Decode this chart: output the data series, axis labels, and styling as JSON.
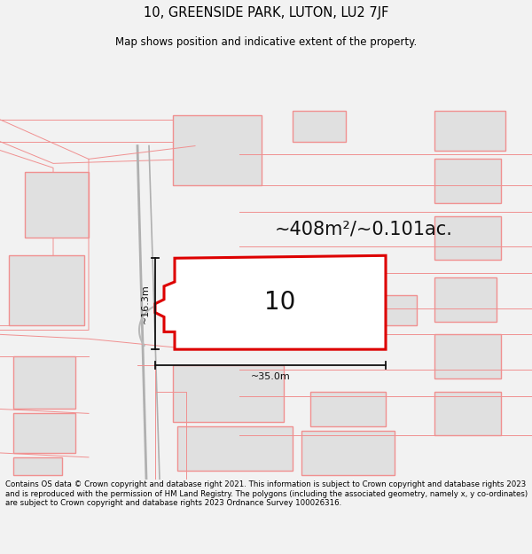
{
  "title_line1": "10, GREENSIDE PARK, LUTON, LU2 7JF",
  "title_line2": "Map shows position and indicative extent of the property.",
  "area_text": "~408m²/~0.101ac.",
  "label_width": "~35.0m",
  "label_height": "~16.3m",
  "property_number": "10",
  "footer_text": "Contains OS data © Crown copyright and database right 2021. This information is subject to Crown copyright and database rights 2023 and is reproduced with the permission of HM Land Registry. The polygons (including the associated geometry, namely x, y co-ordinates) are subject to Crown copyright and database rights 2023 Ordnance Survey 100026316.",
  "bg_color": "#f2f2f2",
  "map_bg": "#ffffff",
  "property_fill": "#ffffff",
  "property_edge": "#dd0000",
  "neighbor_fill": "#e0e0e0",
  "neighbor_edge": "#f09090",
  "dim_line_color": "#111111",
  "text_color": "#111111"
}
